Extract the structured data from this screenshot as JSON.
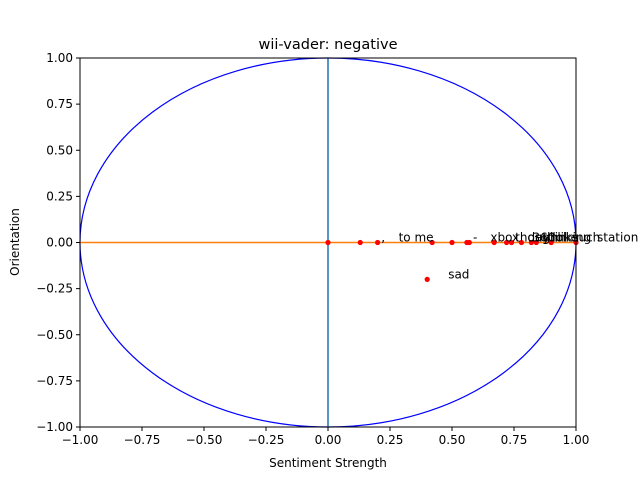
{
  "chart_data": {
    "type": "scatter",
    "title": "wii-vader: negative",
    "xlabel": "Sentiment Strength",
    "ylabel": "Orientation",
    "xlim": [
      -1.0,
      1.0
    ],
    "ylim": [
      -1.0,
      1.0
    ],
    "x_ticks": [
      "−1.00",
      "−0.75",
      "−0.50",
      "−0.25",
      "0.00",
      "0.25",
      "0.50",
      "0.75",
      "1.00"
    ],
    "y_ticks": [
      "1.00",
      "0.75",
      "0.50",
      "0.25",
      "0.00",
      "−0.25",
      "−0.50",
      "−0.75",
      "−1.00"
    ],
    "grid": false,
    "reference_lines": [
      {
        "orientation": "vertical",
        "value": 0.0,
        "color": "#1f77b4"
      },
      {
        "orientation": "horizontal",
        "value": 0.0,
        "color": "#ff7f0e"
      }
    ],
    "unit_circle": {
      "radius": 1.0,
      "color": "#0000ff"
    },
    "point_color": "#ff0000",
    "points": [
      {
        "x": 0.0,
        "y": 0.0,
        "label": ""
      },
      {
        "x": 0.13,
        "y": 0.0,
        "label": ","
      },
      {
        "x": 0.2,
        "y": 0.0,
        "label": "to me"
      },
      {
        "x": 0.42,
        "y": 0.0,
        "label": ""
      },
      {
        "x": 0.5,
        "y": 0.0,
        "label": "-"
      },
      {
        "x": 0.56,
        "y": 0.0,
        "label": ""
      },
      {
        "x": 0.57,
        "y": 0.0,
        "label": "xbox"
      },
      {
        "x": 0.67,
        "y": 0.0,
        "label": "though"
      },
      {
        "x": 0.72,
        "y": 0.0,
        "label": "day"
      },
      {
        "x": 0.74,
        "y": 0.0,
        "label": "360"
      },
      {
        "x": 0.78,
        "y": 0.0,
        "label": "thinking"
      },
      {
        "x": 0.82,
        "y": 0.0,
        "label": "lol"
      },
      {
        "x": 0.84,
        "y": 0.0,
        "label": "like"
      },
      {
        "x": 0.9,
        "y": 0.0,
        "label": "such"
      },
      {
        "x": 1.0,
        "y": 0.0,
        "label": "station"
      },
      {
        "x": 0.4,
        "y": -0.2,
        "label": "sad"
      }
    ]
  }
}
